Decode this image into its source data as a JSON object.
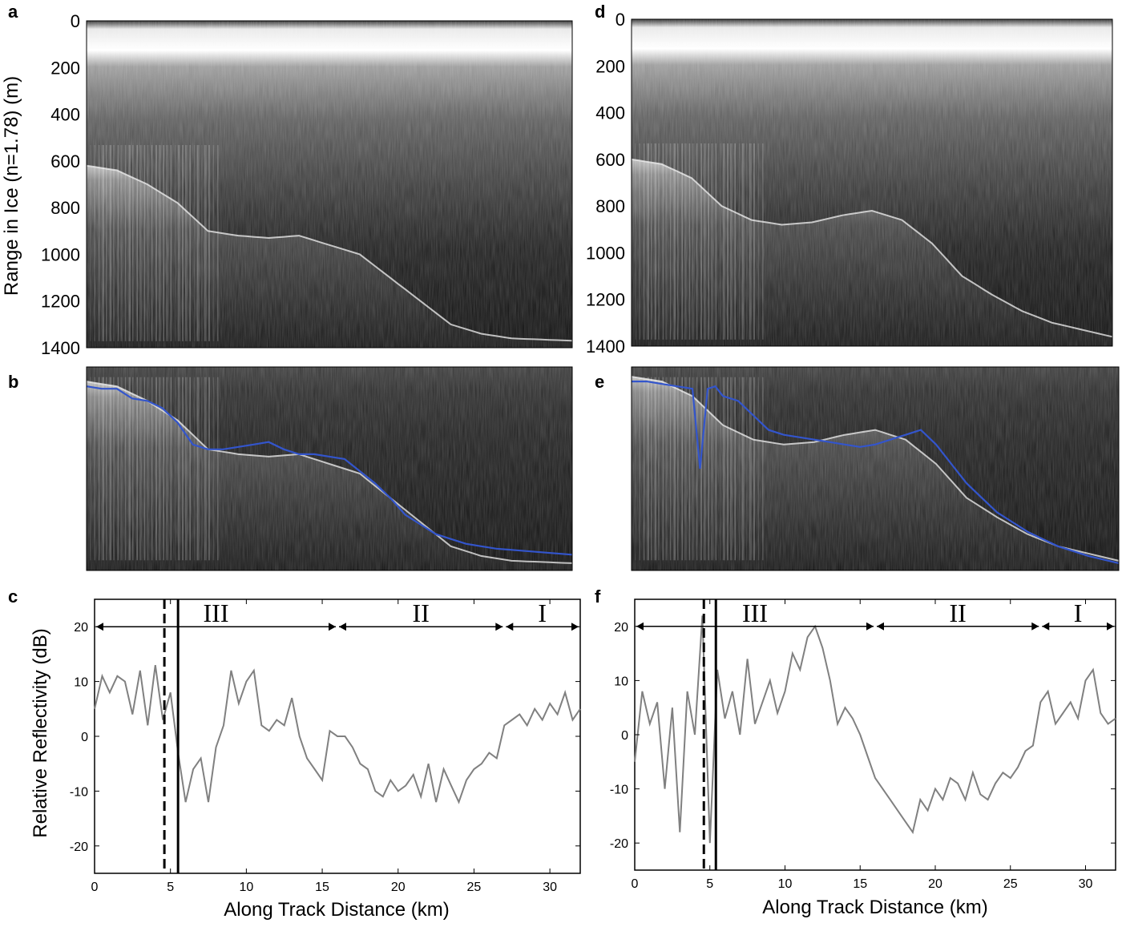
{
  "figure": {
    "panels": {
      "a": "a",
      "b": "b",
      "c": "c",
      "d": "d",
      "e": "e",
      "f": "f"
    }
  },
  "radargram_axis": {
    "ylabel": "Range in Ice (n=1.78) (m)",
    "ylim": [
      0,
      1400
    ],
    "ticks": [
      0,
      200,
      400,
      600,
      800,
      1000,
      1200,
      1400
    ],
    "tick_labels": [
      "0",
      "200",
      "400",
      "600",
      "800",
      "1000",
      "1200",
      "1400"
    ]
  },
  "chart_data": [
    {
      "panel": "a",
      "type": "heatmap",
      "xlabel": "",
      "ylabel": "Range in Ice (n=1.78) (m)",
      "ylim": [
        0,
        1400
      ],
      "bed_depth": [
        620,
        640,
        700,
        780,
        900,
        920,
        930,
        920,
        960,
        1000,
        1100,
        1200,
        1300,
        1340,
        1360,
        1370
      ],
      "bed_x": [
        0,
        2,
        4,
        6,
        8,
        10,
        12,
        14,
        16,
        18,
        20,
        22,
        24,
        26,
        28,
        32
      ]
    },
    {
      "panel": "b",
      "type": "heatmap",
      "series_color": "#3355cc",
      "x": [
        0,
        1,
        2,
        3,
        4,
        5,
        6,
        7,
        8,
        9,
        10,
        11,
        12,
        13,
        14,
        15,
        16,
        17,
        18,
        19,
        20,
        21,
        22,
        23,
        24,
        25,
        26,
        27,
        28,
        29,
        30,
        31,
        32
      ],
      "values": [
        640,
        650,
        650,
        690,
        700,
        730,
        790,
        880,
        900,
        900,
        890,
        880,
        870,
        900,
        920,
        920,
        930,
        940,
        990,
        1040,
        1100,
        1170,
        1210,
        1250,
        1270,
        1290,
        1300,
        1310,
        1315,
        1320,
        1325,
        1330,
        1335
      ]
    },
    {
      "panel": "c",
      "type": "line",
      "xlabel": "Along Track Distance (km)",
      "ylabel": "Relative Reflectivity (dB)",
      "xlim": [
        0,
        32
      ],
      "ylim": [
        -25,
        25
      ],
      "xticks": [
        0,
        5,
        10,
        15,
        20,
        25,
        30
      ],
      "yticks": [
        -20,
        -10,
        0,
        10,
        20
      ],
      "x": [
        0,
        0.5,
        1,
        1.5,
        2,
        2.5,
        3,
        3.5,
        4,
        4.5,
        5,
        5.5,
        6,
        6.5,
        7,
        7.5,
        8,
        8.5,
        9,
        9.5,
        10,
        10.5,
        11,
        11.5,
        12,
        12.5,
        13,
        13.5,
        14,
        14.5,
        15,
        15.5,
        16,
        16.5,
        17,
        17.5,
        18,
        18.5,
        19,
        19.5,
        20,
        20.5,
        21,
        21.5,
        22,
        22.5,
        23,
        23.5,
        24,
        24.5,
        25,
        25.5,
        26,
        26.5,
        27,
        27.5,
        28,
        28.5,
        29,
        29.5,
        30,
        30.5,
        31,
        31.5,
        32
      ],
      "values": [
        5,
        11,
        8,
        11,
        10,
        4,
        12,
        2,
        13,
        3,
        8,
        -3,
        -12,
        -6,
        -4,
        -12,
        -2,
        2,
        12,
        6,
        10,
        12,
        2,
        1,
        3,
        2,
        7,
        0,
        -4,
        -6,
        -8,
        1,
        0,
        0,
        -2,
        -5,
        -6,
        -10,
        -11,
        -8,
        -10,
        -9,
        -7,
        -11,
        -5,
        -12,
        -6,
        -9,
        -12,
        -8,
        -6,
        -5,
        -3,
        -4,
        2,
        3,
        4,
        2,
        5,
        3,
        6,
        4,
        8,
        3,
        5
      ],
      "vlines": [
        {
          "x": 4.6,
          "style": "dashed"
        },
        {
          "x": 5.5,
          "style": "solid"
        }
      ],
      "zones": [
        {
          "label": "III",
          "x0": 0,
          "x1": 16
        },
        {
          "label": "II",
          "x0": 16,
          "x1": 27
        },
        {
          "label": "I",
          "x0": 27,
          "x1": 32
        }
      ],
      "zone_y": 20
    },
    {
      "panel": "d",
      "type": "heatmap",
      "ylim": [
        0,
        1400
      ],
      "bed_x": [
        0,
        2,
        4,
        6,
        8,
        10,
        12,
        14,
        16,
        18,
        20,
        22,
        24,
        26,
        28,
        32
      ],
      "bed_depth": [
        600,
        620,
        680,
        800,
        860,
        880,
        870,
        840,
        820,
        860,
        960,
        1100,
        1180,
        1250,
        1300,
        1360
      ]
    },
    {
      "panel": "e",
      "type": "heatmap",
      "series_color": "#3355cc",
      "x": [
        0,
        1,
        2,
        3,
        4,
        4.5,
        5,
        5.5,
        6,
        7,
        8,
        9,
        10,
        11,
        12,
        13,
        14,
        15,
        16,
        17,
        18,
        19,
        20,
        21,
        22,
        23,
        24,
        25,
        26,
        27,
        28,
        29,
        30,
        31,
        32
      ],
      "values": [
        620,
        620,
        630,
        640,
        650,
        980,
        650,
        640,
        680,
        700,
        760,
        820,
        840,
        850,
        860,
        870,
        880,
        890,
        880,
        860,
        840,
        820,
        880,
        960,
        1040,
        1100,
        1160,
        1200,
        1240,
        1270,
        1300,
        1320,
        1340,
        1355,
        1370
      ]
    },
    {
      "panel": "f",
      "type": "line",
      "xlabel": "Along Track Distance (km)",
      "ylabel": "",
      "xlim": [
        0,
        32
      ],
      "ylim": [
        -25,
        25
      ],
      "xticks": [
        0,
        5,
        10,
        15,
        20,
        25,
        30
      ],
      "yticks": [
        -20,
        -10,
        0,
        10,
        20
      ],
      "x": [
        0,
        0.5,
        1,
        1.5,
        2,
        2.5,
        3,
        3.5,
        4,
        4.5,
        5,
        5.5,
        6,
        6.5,
        7,
        7.5,
        8,
        8.5,
        9,
        9.5,
        10,
        10.5,
        11,
        11.5,
        12,
        12.5,
        13,
        13.5,
        14,
        14.5,
        15,
        15.5,
        16,
        16.5,
        17,
        17.5,
        18,
        18.5,
        19,
        19.5,
        20,
        20.5,
        21,
        21.5,
        22,
        22.5,
        23,
        23.5,
        24,
        24.5,
        25,
        25.5,
        26,
        26.5,
        27,
        27.5,
        28,
        28.5,
        29,
        29.5,
        30,
        30.5,
        31,
        31.5,
        32
      ],
      "values": [
        -5,
        8,
        2,
        6,
        -10,
        5,
        -18,
        8,
        0,
        22,
        -20,
        12,
        3,
        8,
        0,
        14,
        2,
        6,
        10,
        4,
        8,
        15,
        12,
        18,
        20,
        16,
        10,
        2,
        5,
        3,
        0,
        -4,
        -8,
        -10,
        -12,
        -14,
        -16,
        -18,
        -12,
        -14,
        -10,
        -12,
        -8,
        -9,
        -12,
        -7,
        -11,
        -12,
        -9,
        -7,
        -8,
        -6,
        -3,
        -2,
        6,
        8,
        2,
        4,
        6,
        3,
        10,
        12,
        4,
        2,
        3
      ],
      "vlines": [
        {
          "x": 4.6,
          "style": "dashed"
        },
        {
          "x": 5.4,
          "style": "solid"
        }
      ],
      "zones": [
        {
          "label": "III",
          "x0": 0,
          "x1": 16
        },
        {
          "label": "II",
          "x0": 16,
          "x1": 27
        },
        {
          "label": "I",
          "x0": 27,
          "x1": 32
        }
      ],
      "zone_y": 20
    }
  ],
  "colors": {
    "line_gray": "#808080",
    "pick_blue": "#3355cc",
    "radar_dark": "#0a0a0a"
  }
}
